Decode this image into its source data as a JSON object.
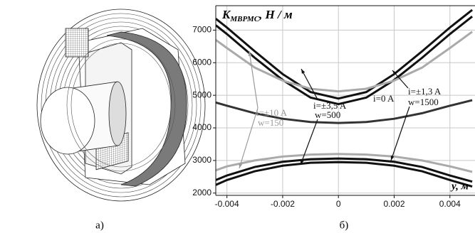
{
  "figure": {
    "caption_a": "а)",
    "caption_b": "б)"
  },
  "chart_data": {
    "type": "line",
    "y_label": {
      "main": "K",
      "sub": "МВРМС",
      "unit": ", Н / м"
    },
    "x_label": "y, м",
    "x": [
      -0.0044,
      -0.004,
      -0.003,
      -0.002,
      -0.001,
      0,
      0.001,
      0.002,
      0.003,
      0.004,
      0.0048
    ],
    "series": [
      {
        "color": "#111111",
        "values": [
          7350,
          7080,
          6350,
          5650,
          5100,
          4900,
          5100,
          5650,
          6350,
          7080,
          7620
        ]
      },
      {
        "color": "#111111",
        "values": [
          7150,
          6880,
          6150,
          5470,
          4930,
          4730,
          4930,
          5470,
          6150,
          6880,
          7420
        ]
      },
      {
        "color": "#aaaaaa",
        "values": [
          6700,
          6450,
          5850,
          5450,
          5200,
          5120,
          5200,
          5450,
          5850,
          6450,
          6950
        ]
      },
      {
        "color": "#333333",
        "values": [
          4780,
          4680,
          4450,
          4280,
          4180,
          4150,
          4180,
          4280,
          4450,
          4680,
          4850
        ]
      },
      {
        "color": "#aaaaaa",
        "values": [
          2700,
          2820,
          3000,
          3120,
          3180,
          3200,
          3180,
          3120,
          3000,
          2820,
          2650
        ]
      },
      {
        "color": "#111111",
        "values": [
          2400,
          2540,
          2800,
          2960,
          3040,
          3060,
          3040,
          2960,
          2800,
          2540,
          2350
        ]
      },
      {
        "color": "#111111",
        "values": [
          2250,
          2400,
          2670,
          2840,
          2930,
          2950,
          2930,
          2840,
          2670,
          2400,
          2200
        ]
      }
    ],
    "xlim": [
      -0.0044,
      0.0049
    ],
    "ylim": [
      1930,
      7750
    ],
    "xticks": [
      -0.004,
      -0.002,
      0,
      0.002,
      0.004
    ],
    "yticks": [
      2000,
      3000,
      4000,
      5000,
      6000,
      7000
    ],
    "grid": true,
    "annotations": [
      {
        "text": "i=±10 A",
        "color": "#999999"
      },
      {
        "text": "w=150",
        "color": "#999999"
      },
      {
        "text": "i=±3,5 A",
        "color": "#111111"
      },
      {
        "text": "w=500",
        "color": "#111111"
      },
      {
        "text": "i=0 A",
        "color": "#111111"
      },
      {
        "text": "i=±1,3 A",
        "color": "#111111"
      },
      {
        "text": "w=1500",
        "color": "#111111"
      }
    ]
  }
}
